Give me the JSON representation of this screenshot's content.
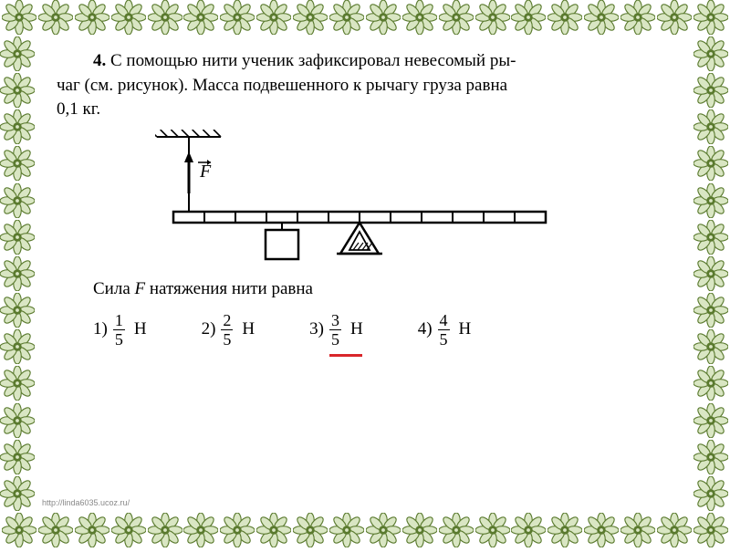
{
  "ornament": {
    "count_horizontal": 20,
    "count_vertical": 13,
    "dark_color": "#5a7a2e",
    "light_color": "#d9e6c3"
  },
  "problem": {
    "number": "4.",
    "text_line1": "С помощью нити ученик зафиксировал невесомый ры-",
    "text_line2": "чаг (см. рисунок). Масса подвешенного к рычагу груза равна",
    "text_line3": "0,1 кг."
  },
  "diagram": {
    "force_label": "F",
    "ceiling_hatches": 6,
    "lever_segments": 12,
    "thread_segment": 1,
    "weight_segment": 4,
    "fulcrum_segment": 6,
    "colors": {
      "stroke": "#000000",
      "fill_white": "#ffffff"
    }
  },
  "question": {
    "prefix": "Сила ",
    "var": "F",
    "suffix": " натяжения нити равна"
  },
  "answers": [
    {
      "n": "1)",
      "num": "1",
      "den": "5",
      "unit": "Н"
    },
    {
      "n": "2)",
      "num": "2",
      "den": "5",
      "unit": "Н"
    },
    {
      "n": "3)",
      "num": "3",
      "den": "5",
      "unit": "Н",
      "marked": true
    },
    {
      "n": "4)",
      "num": "4",
      "den": "5",
      "unit": "Н"
    }
  ],
  "mark_color": "#d9262a",
  "footer_url": "http://linda6035.ucoz.ru/"
}
